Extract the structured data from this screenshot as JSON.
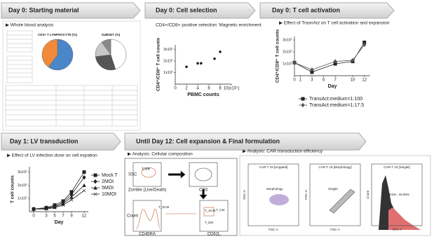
{
  "starting_material": {
    "header": "Day 0:  Starting material",
    "subtitle": "▶ Whole blood analysis",
    "pies": [
      {
        "title": "CD3+ T LYMPHOCYTE (%)",
        "values": [
          60,
          40
        ],
        "colors": [
          "#4a86c8",
          "#f08a3a"
        ]
      },
      {
        "title": "SUBSET (%)",
        "values": [
          45,
          28,
          17,
          10
        ],
        "colors": [
          "#ffffff",
          "#555555",
          "#c8c8c8",
          "#8a8a8a"
        ]
      }
    ]
  },
  "cell_selection": {
    "header": "Day 0: Cell selection",
    "subtitle": "CD4+/CD8+ positive selection: Magnetic enrichment",
    "chart": {
      "type": "scatter",
      "xlabel": "PBMC counts",
      "ylabel": "CD4⁺/CD8⁺ T cell counts",
      "color": "#222222",
      "x": [
        2,
        4,
        4.6,
        7,
        8
      ],
      "values": [
        1.5,
        1.8,
        1.8,
        2.2,
        2.8
      ],
      "xlim": [
        0,
        10
      ],
      "ylim": [
        0,
        3.4
      ],
      "xticks": [
        0,
        2,
        4,
        6,
        8,
        {
          "value": 10,
          "label": "10(x10⁷)"
        }
      ],
      "yticks": [
        {
          "value": 1,
          "label": "1x10⁷"
        },
        {
          "value": 2,
          "label": "2x10⁷"
        },
        {
          "value": 3,
          "label": "3x10⁷"
        }
      ]
    }
  },
  "t_cell_activation": {
    "header": "Day 0: T cell activation",
    "subtitle": "▶ Effect of TrasnAct on T cell activation and expansion",
    "chart": {
      "type": "line",
      "xlabel": "Day",
      "ylabel": "CD4⁺/CD8⁺ T cell counts",
      "x": [
        0,
        3,
        7,
        10,
        12
      ],
      "xlim": [
        0,
        13
      ],
      "ylim": [
        0,
        3.3
      ],
      "xticks": [
        0,
        1,
        3,
        5,
        7,
        10,
        12
      ],
      "yticks": [
        {
          "value": 1,
          "label": "1x10⁷"
        },
        {
          "value": 2,
          "label": "2x10⁷"
        },
        {
          "value": 3,
          "label": "3x10⁷"
        }
      ],
      "series": [
        {
          "name": "TransAct:medium=1:100",
          "color": "#222222",
          "marker": "square",
          "values": [
            1.1,
            0.3,
            1.0,
            1.2,
            2.8
          ]
        },
        {
          "name": "TransAct:medium=1:17.5",
          "color": "#555555",
          "marker": "diamond",
          "values": [
            1.1,
            0.5,
            1.2,
            1.3,
            2.6
          ]
        }
      ]
    }
  },
  "lv_transduction": {
    "header": "Day 1: LV transduction",
    "subtitle": "▶ Effect of LV infection dose on cell expation",
    "chart": {
      "type": "line",
      "xlabel": "Day",
      "ylabel": "T cell counts",
      "x": [
        0,
        3,
        5,
        7,
        9,
        12
      ],
      "xlim": [
        -1,
        13
      ],
      "ylim": [
        0,
        3.4
      ],
      "xticks": [
        0,
        3,
        5,
        7,
        9,
        12
      ],
      "yticks": [
        {
          "value": 1,
          "label": "1x10⁷"
        },
        {
          "value": 2,
          "label": "2x10⁷"
        },
        {
          "value": 3,
          "label": "3x10⁷"
        }
      ],
      "series": [
        {
          "name": "Mock T",
          "color": "#222222",
          "marker": "square",
          "values": [
            0.2,
            0.3,
            0.5,
            0.8,
            1.5,
            3.0
          ]
        },
        {
          "name": "2MOI",
          "color": "#222222",
          "marker": "diamond",
          "values": [
            0.2,
            0.3,
            0.4,
            0.7,
            1.3,
            2.6
          ]
        },
        {
          "name": "5MOI",
          "color": "#222222",
          "marker": "triangle",
          "values": [
            0.2,
            0.25,
            0.35,
            0.6,
            1.1,
            2.0
          ]
        },
        {
          "name": "10MOI",
          "color": "#222222",
          "marker": "cross",
          "values": [
            0.2,
            0.2,
            0.3,
            0.5,
            0.9,
            1.6
          ]
        }
      ]
    }
  },
  "final": {
    "header": "Until Day 12: Cell expansion  &  Final formulation",
    "composition": {
      "title": "▶ Analysis: Cellular composition",
      "labels": [
        "SSC",
        "Live",
        "Zombie (Live/Death)",
        "CD3",
        "Count",
        "CD45RA",
        "CD62L",
        "T_SCM",
        "T_CM",
        "T_EM"
      ]
    },
    "car": {
      "title": "▶ Analysis: CAR transduction efficiency",
      "plots": [
        {
          "title": "CAR-T 19 [Ungated]",
          "gate": "Morphology",
          "xaxis": "FSC-A",
          "yaxis": "SSC-A"
        },
        {
          "title": "CAR-T 19 [Morphology]",
          "gate": "Singlet",
          "xaxis": "FSC-A",
          "yaxis": "FSC-H"
        },
        {
          "title": "CAR-T 19 [Singlet]",
          "gate": "CD19+: 26.59%",
          "xaxis": "APC-A",
          "yaxis": "Count"
        }
      ]
    }
  }
}
